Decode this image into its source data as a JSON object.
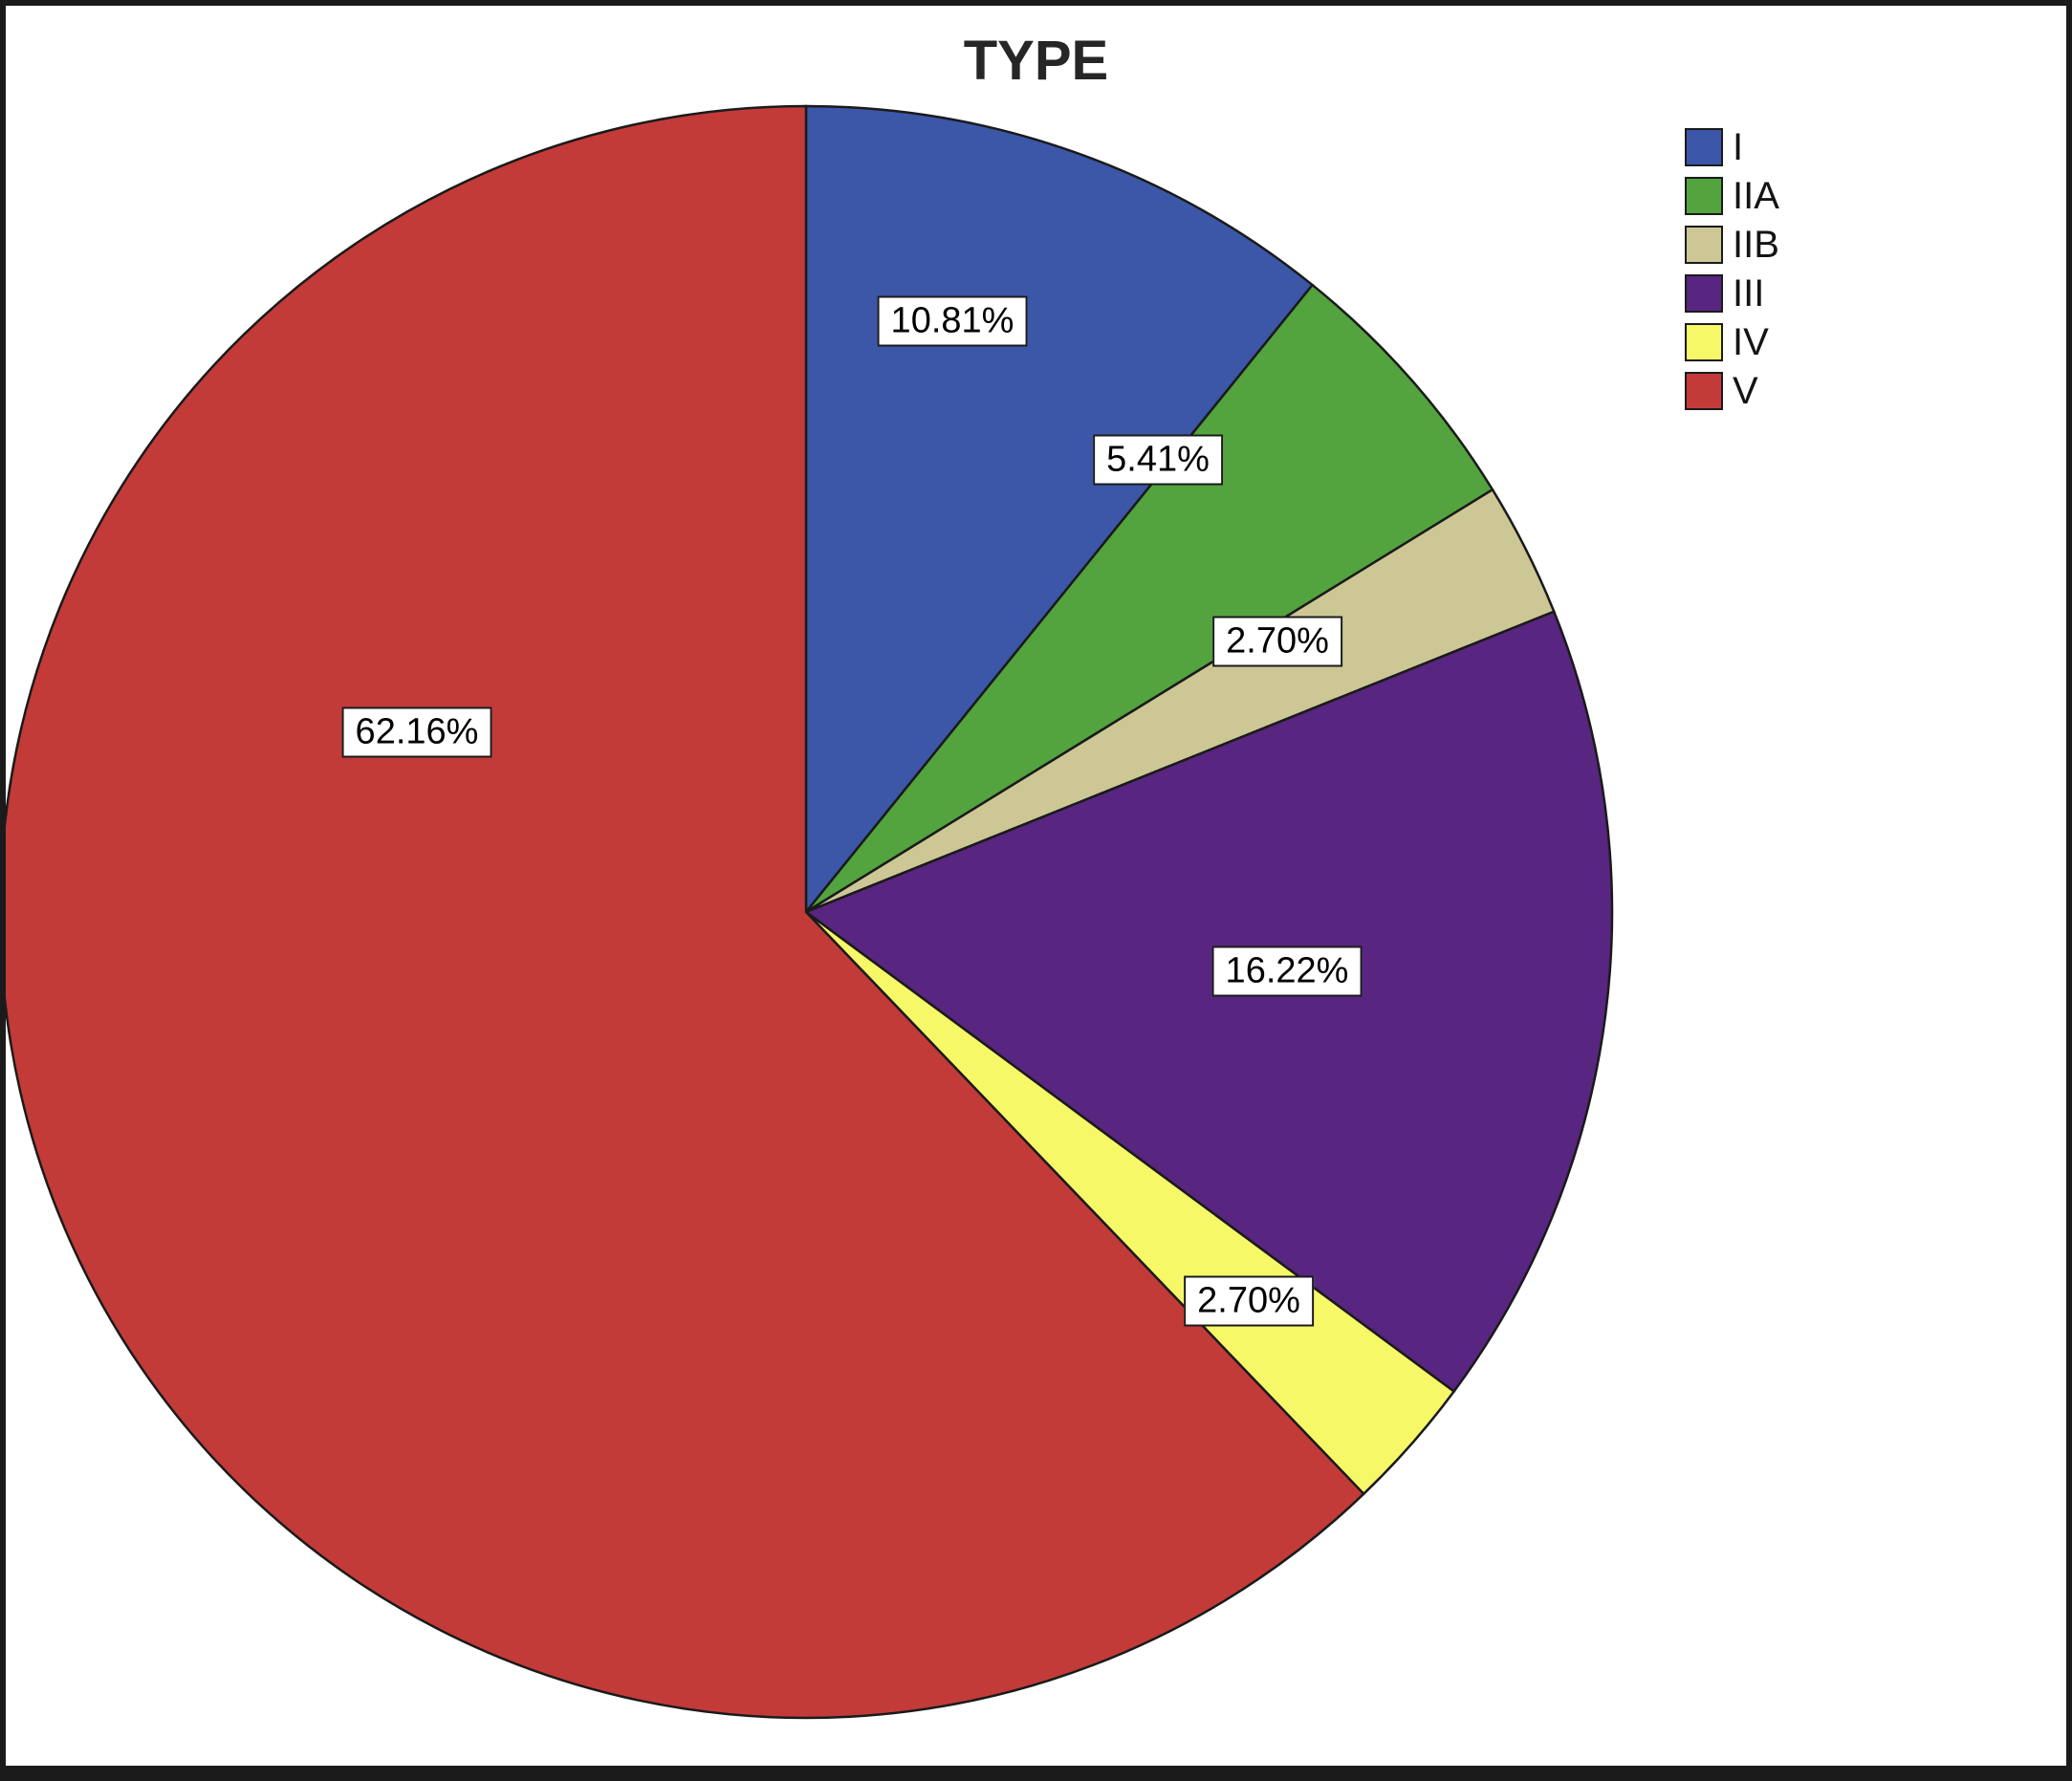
{
  "chart_data": {
    "type": "pie",
    "title": "TYPE",
    "unit": "percent",
    "direction": "clockwise",
    "start_angle_deg": 0,
    "grid": false,
    "legend_position": "top-right",
    "slices": [
      {
        "category": "I",
        "value": 10.81,
        "label": "10.81%",
        "color": "#3C56A8",
        "label_xy": [
          990,
          330
        ]
      },
      {
        "category": "IIA",
        "value": 5.41,
        "label": "5.41%",
        "color": "#53A33E",
        "label_xy": [
          1205,
          475
        ]
      },
      {
        "category": "IIB",
        "value": 2.7,
        "label": "2.70%",
        "color": "#CCC795",
        "label_xy": [
          1330,
          665
        ]
      },
      {
        "category": "III",
        "value": 16.22,
        "label": "16.22%",
        "color": "#582580",
        "label_xy": [
          1340,
          1010
        ]
      },
      {
        "category": "IV",
        "value": 2.7,
        "label": "2.70%",
        "color": "#F7F868",
        "label_xy": [
          1300,
          1355
        ]
      },
      {
        "category": "V",
        "value": 62.16,
        "label": "62.16%",
        "color": "#C23B39",
        "label_xy": [
          430,
          760
        ]
      }
    ]
  }
}
